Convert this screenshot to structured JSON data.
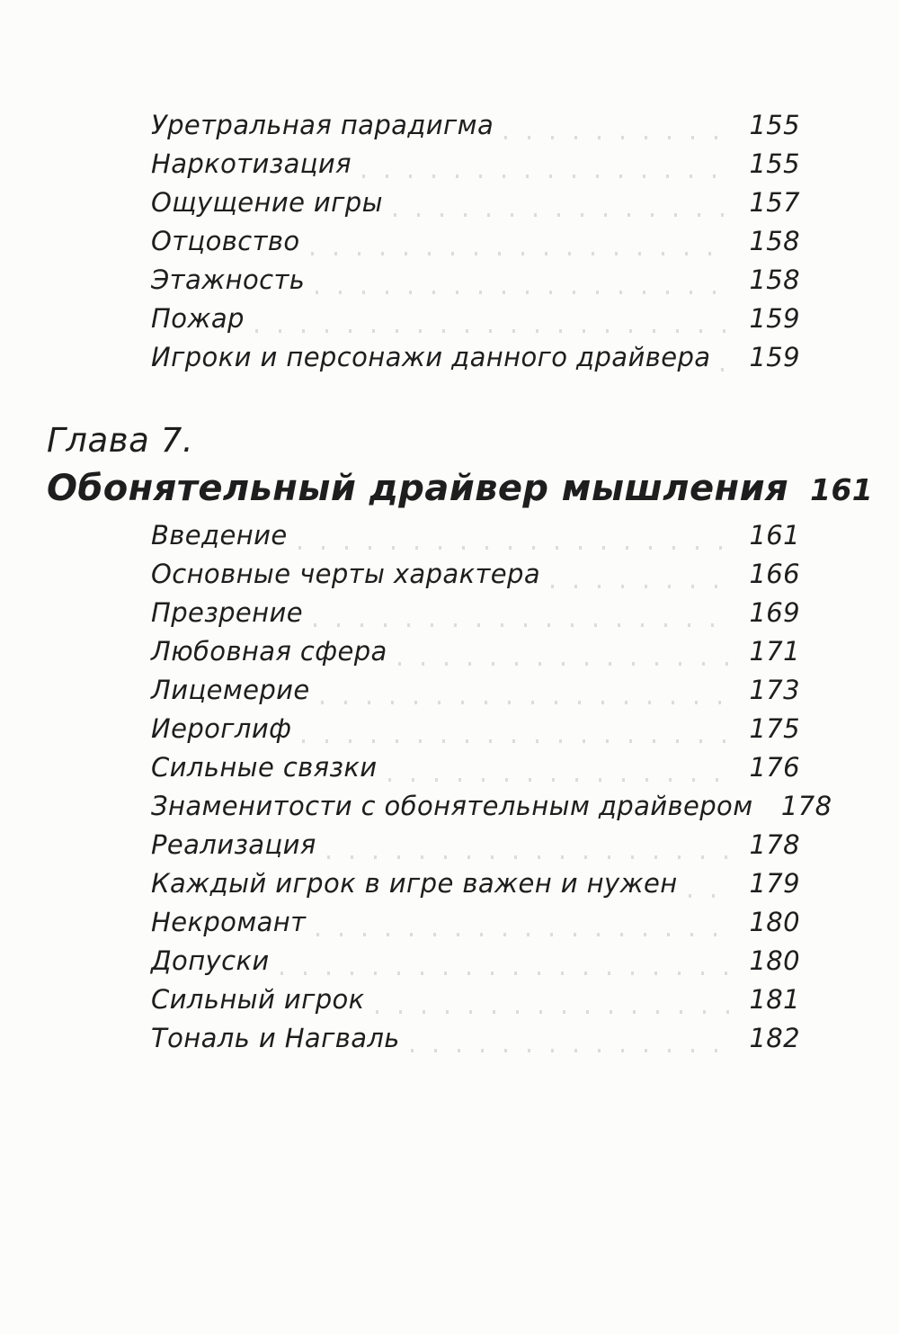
{
  "toc": {
    "colors": {
      "ink": "#1e1e1e",
      "leader_faint": "#dcdcdc",
      "leader_dark": "#8c8c8c",
      "paper": "#fcfcfb"
    },
    "sections": {
      "top": {
        "entries": [
          {
            "title": "Уретральная парадигма",
            "page": "155"
          },
          {
            "title": "Наркотизация",
            "page": "155"
          },
          {
            "title": "Ощущение игры",
            "page": "157"
          },
          {
            "title": "Отцовство",
            "page": "158"
          },
          {
            "title": "Этажность",
            "page": "158"
          },
          {
            "title": "Пожар",
            "page": "159"
          },
          {
            "title": "Игроки и персонажи данного драйвера",
            "page": "159"
          }
        ]
      },
      "chapter7": {
        "label": "Глава 7.",
        "title": "Обонятельный драйвер мышления",
        "page": "161",
        "entries": [
          {
            "title": "Введение",
            "page": "161"
          },
          {
            "title": "Основные черты характера",
            "page": "166"
          },
          {
            "title": "Презрение",
            "page": "169"
          },
          {
            "title": "Любовная сфера",
            "page": "171"
          },
          {
            "title": "Лицемерие",
            "page": "173"
          },
          {
            "title": "Иероглиф",
            "page": "175"
          },
          {
            "title": "Сильные связки",
            "page": "176"
          },
          {
            "title": "Знаменитости с обонятельным драйвером",
            "page": "178"
          },
          {
            "title": "Реализация",
            "page": "178"
          },
          {
            "title": "Каждый игрок в игре важен и нужен",
            "page": "179"
          },
          {
            "title": "Некромант",
            "page": "180"
          },
          {
            "title": "Допуски",
            "page": "180"
          },
          {
            "title": "Сильный игрок",
            "page": "181"
          },
          {
            "title": "Тональ и Нагваль",
            "page": "182"
          }
        ]
      }
    }
  }
}
